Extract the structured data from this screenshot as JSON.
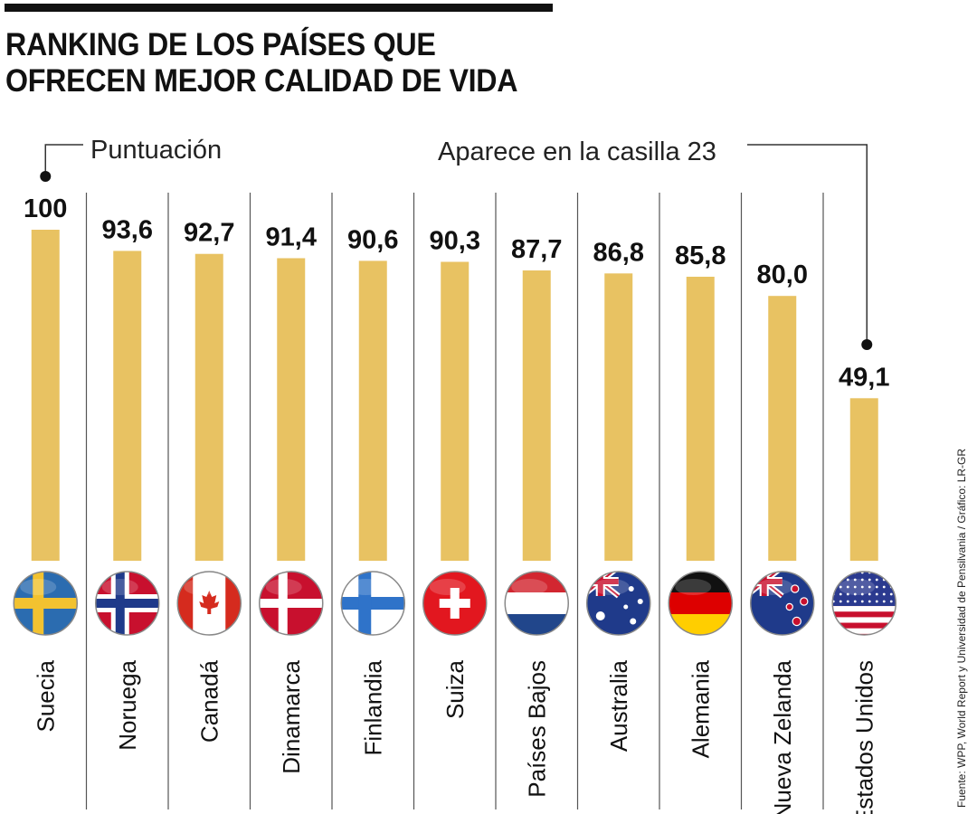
{
  "title_lines": [
    "RANKING DE LOS PAÍSES QUE",
    "OFRECEN MEJOR CALIDAD DE VIDA"
  ],
  "annotations": {
    "score": "Puntuación",
    "us_rank": "Aparece en la casilla 23"
  },
  "source": "Fuente: WPP, World Report y Universidad de Pensilvania / Gráfico: LR-GR",
  "colors": {
    "bar": "#E8C262",
    "divider": "#555555",
    "text": "#111111"
  },
  "chart_data": {
    "type": "bar",
    "categories": [
      "Suecia",
      "Noruega",
      "Canadá",
      "Dinamarca",
      "Finlandia",
      "Suiza",
      "Países Bajos",
      "Australia",
      "Alemania",
      "Nueva Zelanda",
      "Estados Unidos"
    ],
    "values": [
      100,
      93.6,
      92.7,
      91.4,
      90.6,
      90.3,
      87.7,
      86.8,
      85.8,
      80.0,
      49.1
    ],
    "value_labels": [
      "100",
      "93,6",
      "92,7",
      "91,4",
      "90,6",
      "90,3",
      "87,7",
      "86,8",
      "85,8",
      "80,0",
      "49,1"
    ],
    "flag_icons": [
      "sweden-flag-icon",
      "norway-flag-icon",
      "canada-flag-icon",
      "denmark-flag-icon",
      "finland-flag-icon",
      "switzerland-flag-icon",
      "netherlands-flag-icon",
      "australia-flag-icon",
      "germany-flag-icon",
      "new-zealand-flag-icon",
      "usa-flag-icon"
    ],
    "ylim": [
      0,
      100
    ],
    "grid": false,
    "legend": "none"
  }
}
